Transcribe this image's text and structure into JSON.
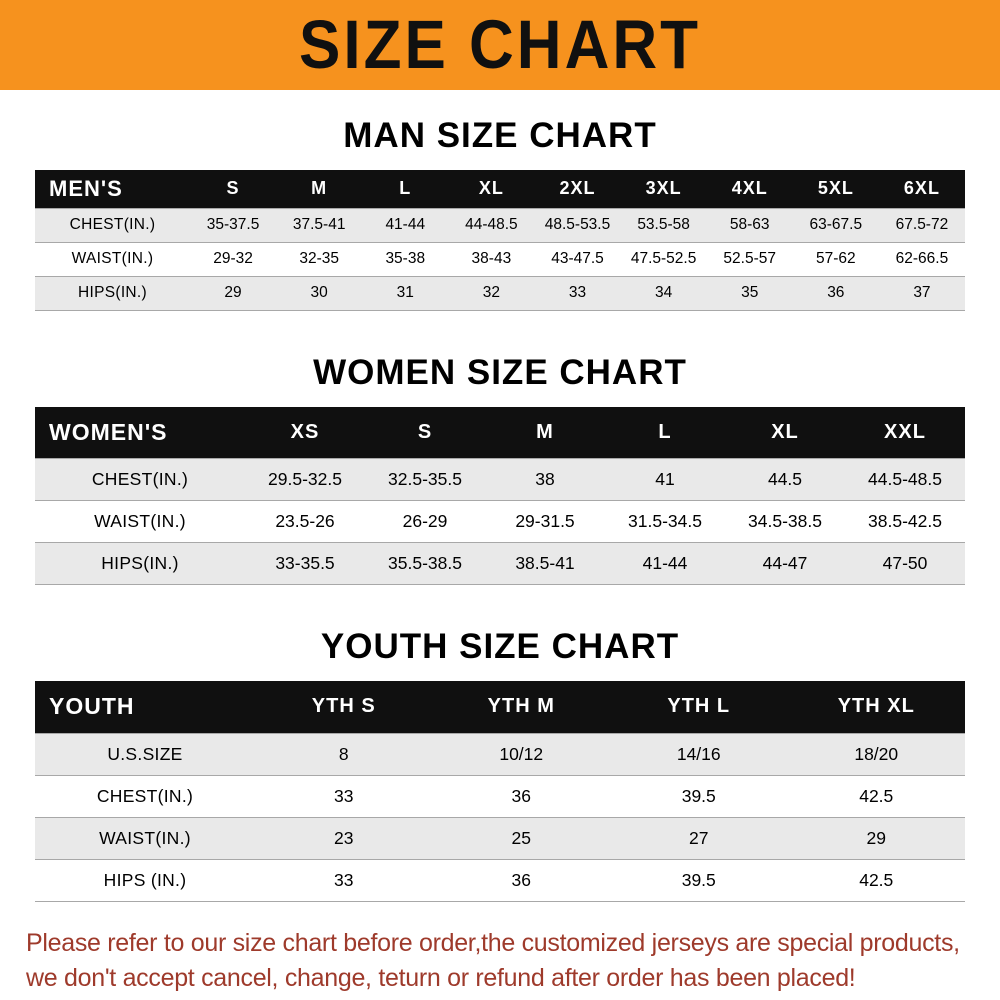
{
  "banner": {
    "title": "SIZE CHART",
    "bg": "#f6921e"
  },
  "footer": {
    "line1": "Please refer to our size chart before order,the customized jerseys are special products,",
    "line2": "we don't accept cancel, change, teturn or refund after order has been placed!",
    "color": "#9e3a2b"
  },
  "chart_data": [
    {
      "type": "table",
      "title": "MAN SIZE CHART",
      "columns": [
        "MEN'S",
        "S",
        "M",
        "L",
        "XL",
        "2XL",
        "3XL",
        "4XL",
        "5XL",
        "6XL"
      ],
      "rows": [
        {
          "label": "CHEST(IN.)",
          "values": [
            "35-37.5",
            "37.5-41",
            "41-44",
            "44-48.5",
            "48.5-53.5",
            "53.5-58",
            "58-63",
            "63-67.5",
            "67.5-72"
          ]
        },
        {
          "label": "WAIST(IN.)",
          "values": [
            "29-32",
            "32-35",
            "35-38",
            "38-43",
            "43-47.5",
            "47.5-52.5",
            "52.5-57",
            "57-62",
            "62-66.5"
          ]
        },
        {
          "label": "HIPS(IN.)",
          "values": [
            "29",
            "30",
            "31",
            "32",
            "33",
            "34",
            "35",
            "36",
            "37"
          ]
        }
      ]
    },
    {
      "type": "table",
      "title": "WOMEN SIZE CHART",
      "columns": [
        "WOMEN'S",
        "XS",
        "S",
        "M",
        "L",
        "XL",
        "XXL"
      ],
      "rows": [
        {
          "label": "CHEST(IN.)",
          "values": [
            "29.5-32.5",
            "32.5-35.5",
            "38",
            "41",
            "44.5",
            "44.5-48.5"
          ]
        },
        {
          "label": "WAIST(IN.)",
          "values": [
            "23.5-26",
            "26-29",
            "29-31.5",
            "31.5-34.5",
            "34.5-38.5",
            "38.5-42.5"
          ]
        },
        {
          "label": "HIPS(IN.)",
          "values": [
            "33-35.5",
            "35.5-38.5",
            "38.5-41",
            "41-44",
            "44-47",
            "47-50"
          ]
        }
      ]
    },
    {
      "type": "table",
      "title": "YOUTH SIZE CHART",
      "columns": [
        "YOUTH",
        "YTH S",
        "YTH M",
        "YTH L",
        "YTH XL"
      ],
      "rows": [
        {
          "label": "U.S.SIZE",
          "values": [
            "8",
            "10/12",
            "14/16",
            "18/20"
          ]
        },
        {
          "label": "CHEST(IN.)",
          "values": [
            "33",
            "36",
            "39.5",
            "42.5"
          ]
        },
        {
          "label": "WAIST(IN.)",
          "values": [
            "23",
            "25",
            "27",
            "29"
          ]
        },
        {
          "label": "HIPS (IN.)",
          "values": [
            "33",
            "36",
            "39.5",
            "42.5"
          ]
        }
      ]
    }
  ]
}
